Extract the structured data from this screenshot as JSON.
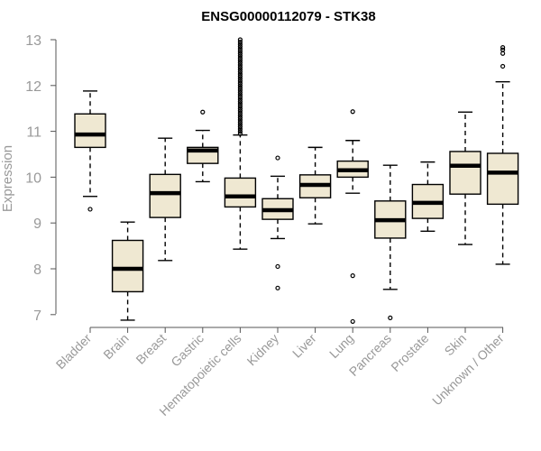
{
  "chart_data": {
    "type": "boxplot",
    "title": "ENSG00000112079 - STK38",
    "xlabel": "",
    "ylabel": "Expression",
    "ylim": [
      6.8,
      13.05
    ],
    "yticks": [
      7,
      8,
      9,
      10,
      11,
      12,
      13
    ],
    "box_fill": "#efe8d2",
    "series": [
      {
        "name": "Bladder",
        "q1": 10.65,
        "median": 10.93,
        "q3": 11.38,
        "whisker_low": 9.58,
        "whisker_high": 11.88,
        "outliers": [
          9.3
        ]
      },
      {
        "name": "Brain",
        "q1": 7.5,
        "median": 8.0,
        "q3": 8.62,
        "whisker_low": 6.88,
        "whisker_high": 9.02,
        "outliers": []
      },
      {
        "name": "Breast",
        "q1": 9.12,
        "median": 9.65,
        "q3": 10.06,
        "whisker_low": 8.18,
        "whisker_high": 10.85,
        "outliers": []
      },
      {
        "name": "Gastric",
        "q1": 10.3,
        "median": 10.58,
        "q3": 10.65,
        "whisker_low": 9.9,
        "whisker_high": 11.02,
        "outliers": [
          11.42
        ]
      },
      {
        "name": "Hematopoietic cells",
        "q1": 9.35,
        "median": 9.58,
        "q3": 9.98,
        "whisker_low": 8.43,
        "whisker_high": 10.92,
        "outliers": [
          10.95,
          11.0,
          11.05,
          11.1,
          11.15,
          11.2,
          11.25,
          11.3,
          11.35,
          11.4,
          11.45,
          11.5,
          11.55,
          11.6,
          11.65,
          11.7,
          11.75,
          11.8,
          11.85,
          11.9,
          11.95,
          12.0,
          12.05,
          12.1,
          12.15,
          12.2,
          12.25,
          12.3,
          12.35,
          12.4,
          12.45,
          12.5,
          12.55,
          12.6,
          12.65,
          12.7,
          12.75,
          12.8,
          12.85,
          12.9,
          12.95,
          13.0
        ]
      },
      {
        "name": "Kidney",
        "q1": 9.08,
        "median": 9.28,
        "q3": 9.53,
        "whisker_low": 8.66,
        "whisker_high": 10.02,
        "outliers": [
          10.42,
          8.05,
          7.58
        ]
      },
      {
        "name": "Liver",
        "q1": 9.55,
        "median": 9.83,
        "q3": 10.05,
        "whisker_low": 8.98,
        "whisker_high": 10.65,
        "outliers": []
      },
      {
        "name": "Lung",
        "q1": 10.0,
        "median": 10.15,
        "q3": 10.35,
        "whisker_low": 9.65,
        "whisker_high": 10.8,
        "outliers": [
          11.43,
          7.85,
          6.85
        ]
      },
      {
        "name": "Pancreas",
        "q1": 8.67,
        "median": 9.06,
        "q3": 9.48,
        "whisker_low": 7.55,
        "whisker_high": 10.26,
        "outliers": [
          6.93
        ]
      },
      {
        "name": "Prostate",
        "q1": 9.1,
        "median": 9.44,
        "q3": 9.84,
        "whisker_low": 8.82,
        "whisker_high": 10.33,
        "outliers": []
      },
      {
        "name": "Skin",
        "q1": 9.63,
        "median": 10.25,
        "q3": 10.56,
        "whisker_low": 8.53,
        "whisker_high": 11.42,
        "outliers": []
      },
      {
        "name": "Unknown / Other",
        "q1": 9.41,
        "median": 10.1,
        "q3": 10.52,
        "whisker_low": 8.1,
        "whisker_high": 12.08,
        "outliers": [
          12.42,
          12.7,
          12.78,
          12.83
        ]
      }
    ]
  }
}
